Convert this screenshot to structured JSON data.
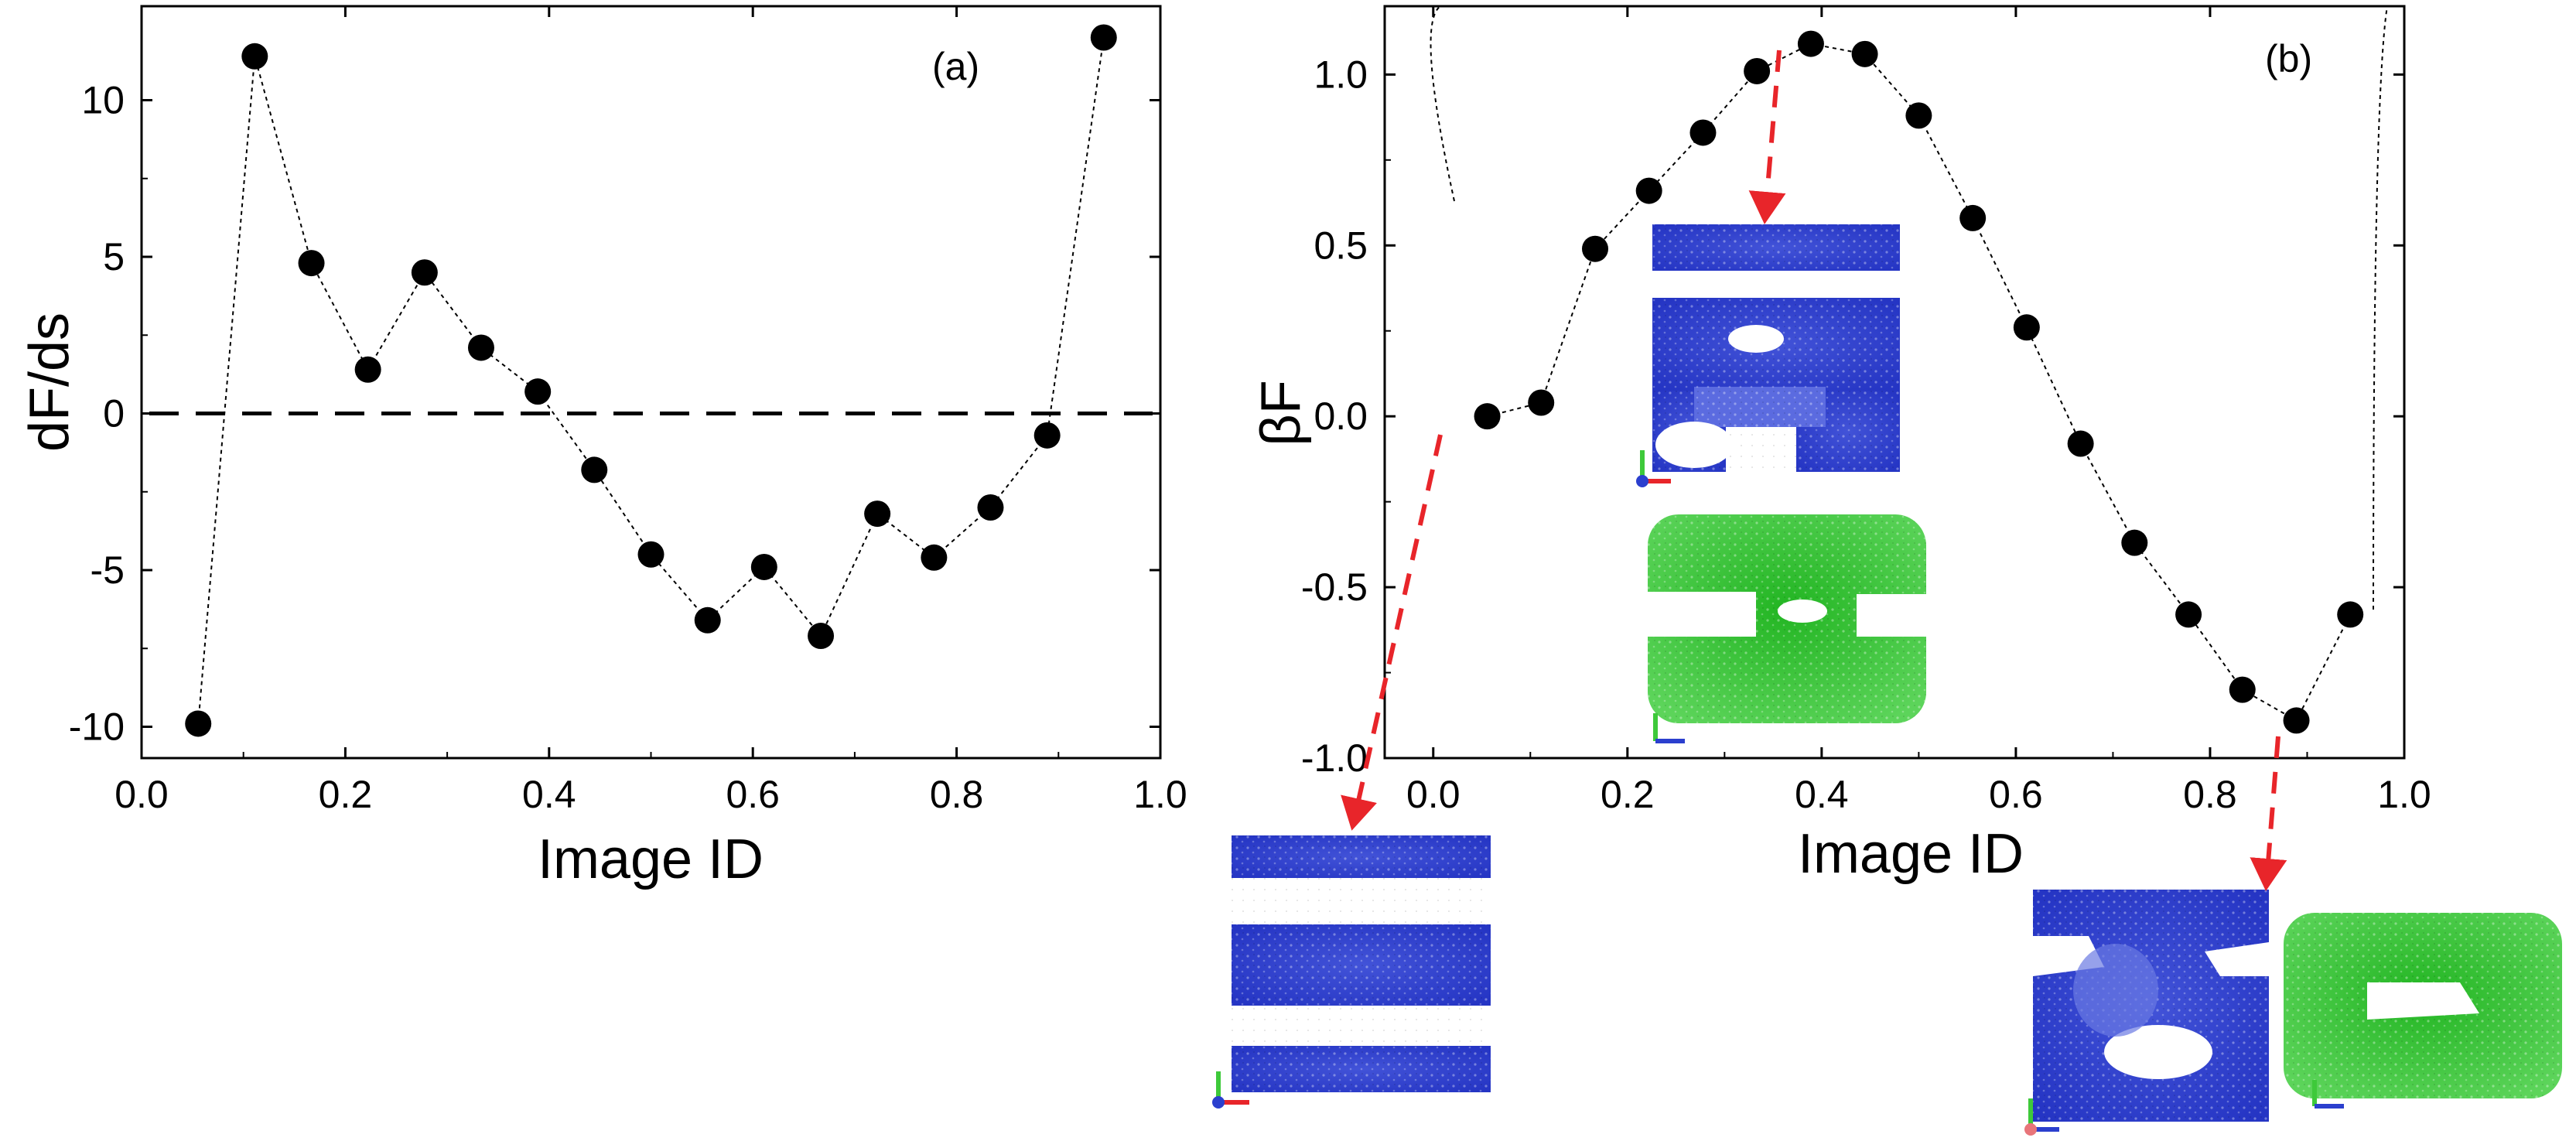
{
  "chart_data": [
    {
      "type": "scatter",
      "panel_label": "(a)",
      "xlabel": "Image ID",
      "ylabel": "dF/ds",
      "xlim": [
        0.0,
        1.0
      ],
      "ylim": [
        -11,
        13
      ],
      "xticks": [
        "0.0",
        "0.2",
        "0.4",
        "0.6",
        "0.8",
        "1.0"
      ],
      "yticks": [
        "-10",
        "-5",
        "0",
        "5",
        "10"
      ],
      "reference_line": {
        "y": 0,
        "style": "dashed"
      },
      "connector": "dotted",
      "series": [
        {
          "name": "dF/ds",
          "x": [
            0.0556,
            0.1111,
            0.1667,
            0.2222,
            0.2778,
            0.3333,
            0.3889,
            0.4444,
            0.5,
            0.5556,
            0.6111,
            0.6667,
            0.7222,
            0.7778,
            0.8333,
            0.8889,
            0.9444
          ],
          "y": [
            -9.9,
            11.4,
            4.8,
            1.4,
            4.5,
            2.1,
            0.7,
            -1.8,
            -4.5,
            -6.6,
            -4.9,
            -7.1,
            -3.2,
            -4.6,
            -3.0,
            -0.7,
            12.0
          ]
        }
      ]
    },
    {
      "type": "scatter",
      "panel_label": "(b)",
      "xlabel": "Image ID",
      "ylabel": "βF",
      "xlim": [
        -0.05,
        1.0
      ],
      "ylim": [
        -1.0,
        1.2
      ],
      "xticks": [
        "0.0",
        "0.2",
        "0.4",
        "0.6",
        "0.8",
        "1.0"
      ],
      "yticks": [
        "-1.0",
        "-0.5",
        "0.0",
        "0.5",
        "1.0"
      ],
      "connector": "dotted",
      "series": [
        {
          "name": "βF",
          "x": [
            0.0556,
            0.1111,
            0.1667,
            0.2222,
            0.2778,
            0.3333,
            0.3889,
            0.4444,
            0.5,
            0.5556,
            0.6111,
            0.6667,
            0.7222,
            0.7778,
            0.8333,
            0.8889,
            0.9444
          ],
          "y": [
            0.0,
            0.04,
            0.49,
            0.66,
            0.83,
            1.01,
            1.09,
            1.06,
            0.88,
            0.58,
            0.26,
            -0.08,
            -0.37,
            -0.58,
            -0.8,
            -0.89,
            -0.58
          ]
        }
      ],
      "insets": [
        {
          "name": "initial-state-snapshot",
          "phases": [
            "blue"
          ],
          "points_to_x": -0.04
        },
        {
          "name": "barrier-state-snapshot",
          "phases": [
            "blue",
            "green"
          ],
          "points_to_x": 0.3889
        },
        {
          "name": "final-state-snapshot",
          "phases": [
            "blue",
            "green"
          ],
          "points_to_x": 0.8889
        }
      ]
    }
  ],
  "colors": {
    "marker": "#000000",
    "arrow": "#e8252a",
    "phase_blue": "#2b3fce",
    "phase_green": "#3ec93a"
  }
}
